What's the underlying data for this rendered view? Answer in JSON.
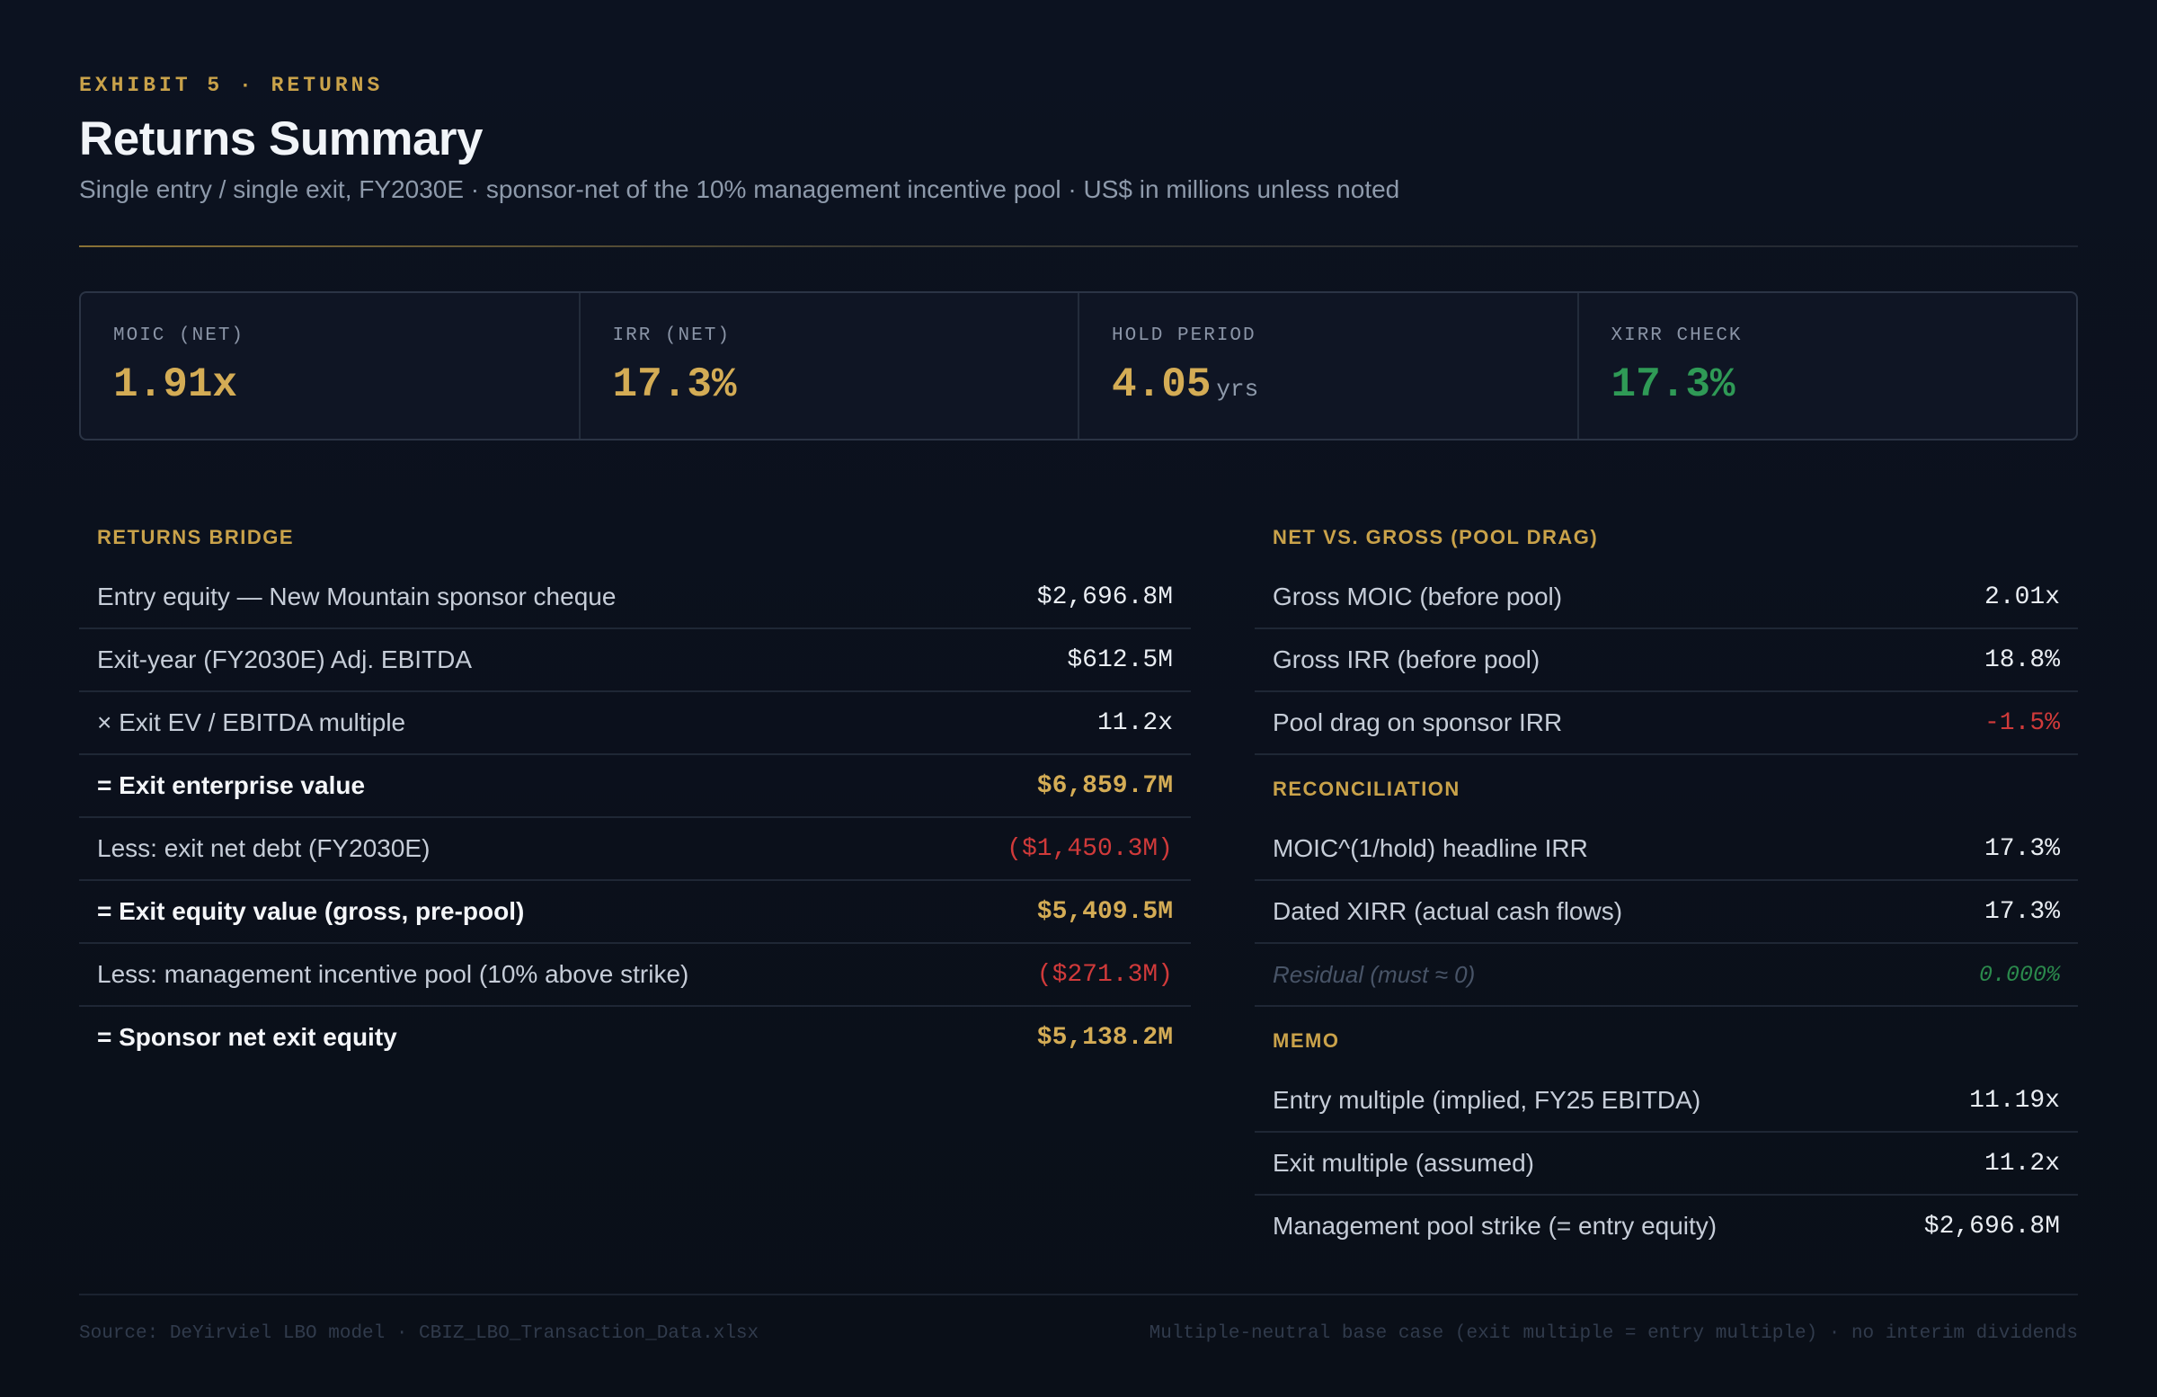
{
  "header": {
    "eyebrow": "EXHIBIT 5 · RETURNS",
    "title": "Returns Summary",
    "subtitle": "Single entry / single exit, FY2030E · sponsor-net of the 10% management incentive pool · US$ in millions unless noted"
  },
  "kpis": [
    {
      "label": "MOIC (NET)",
      "value": "1.91x",
      "unit": ""
    },
    {
      "label": "IRR (NET)",
      "value": "17.3%",
      "unit": ""
    },
    {
      "label": "HOLD PERIOD",
      "value": "4.05",
      "unit": "yrs"
    },
    {
      "label": "XIRR CHECK",
      "value": "17.3%",
      "unit": ""
    }
  ],
  "colors": {
    "accent": "#c9a24a",
    "positive": "#2f9a56",
    "negative": "#d03a3a"
  },
  "returns_bridge": {
    "title": "RETURNS BRIDGE",
    "rows": [
      {
        "label": "Entry equity — New Mountain sponsor cheque",
        "value": "$2,696.8M"
      },
      {
        "label": "Exit-year (FY2030E) Adj. EBITDA",
        "value": "$612.5M"
      },
      {
        "label": "× Exit EV / EBITDA multiple",
        "value": "11.2x"
      },
      {
        "label": "= Exit enterprise value",
        "value": "$6,859.7M"
      },
      {
        "label": "Less: exit net debt (FY2030E)",
        "value": "($1,450.3M)"
      },
      {
        "label": "= Exit equity value (gross, pre-pool)",
        "value": "$5,409.5M"
      },
      {
        "label": "Less: management incentive pool (10% above strike)",
        "value": "($271.3M)"
      },
      {
        "label": "= Sponsor net exit equity",
        "value": "$5,138.2M"
      }
    ]
  },
  "net_vs_gross": {
    "title": "NET VS. GROSS (POOL DRAG)",
    "rows": [
      {
        "label": "Gross MOIC (before pool)",
        "value": "2.01x"
      },
      {
        "label": "Gross IRR (before pool)",
        "value": "18.8%"
      },
      {
        "label": "Pool drag on sponsor IRR",
        "value": "-1.5%"
      }
    ]
  },
  "reconciliation": {
    "title": "RECONCILIATION",
    "rows": [
      {
        "label": "MOIC^(1/hold) headline IRR",
        "value": "17.3%"
      },
      {
        "label": "Dated XIRR (actual cash flows)",
        "value": "17.3%"
      },
      {
        "label": "Residual (must ≈ 0)",
        "value": "0.000%"
      }
    ]
  },
  "memo": {
    "title": "MEMO",
    "rows": [
      {
        "label": "Entry multiple (implied, FY25 EBITDA)",
        "value": "11.19x"
      },
      {
        "label": "Exit multiple (assumed)",
        "value": "11.2x"
      },
      {
        "label": "Management pool strike (= entry equity)",
        "value": "$2,696.8M"
      }
    ]
  },
  "footer": {
    "source": "Source: DeYirviel LBO model · CBIZ_LBO_Transaction_Data.xlsx",
    "note": "Multiple-neutral base case (exit multiple = entry multiple) · no interim dividends"
  }
}
